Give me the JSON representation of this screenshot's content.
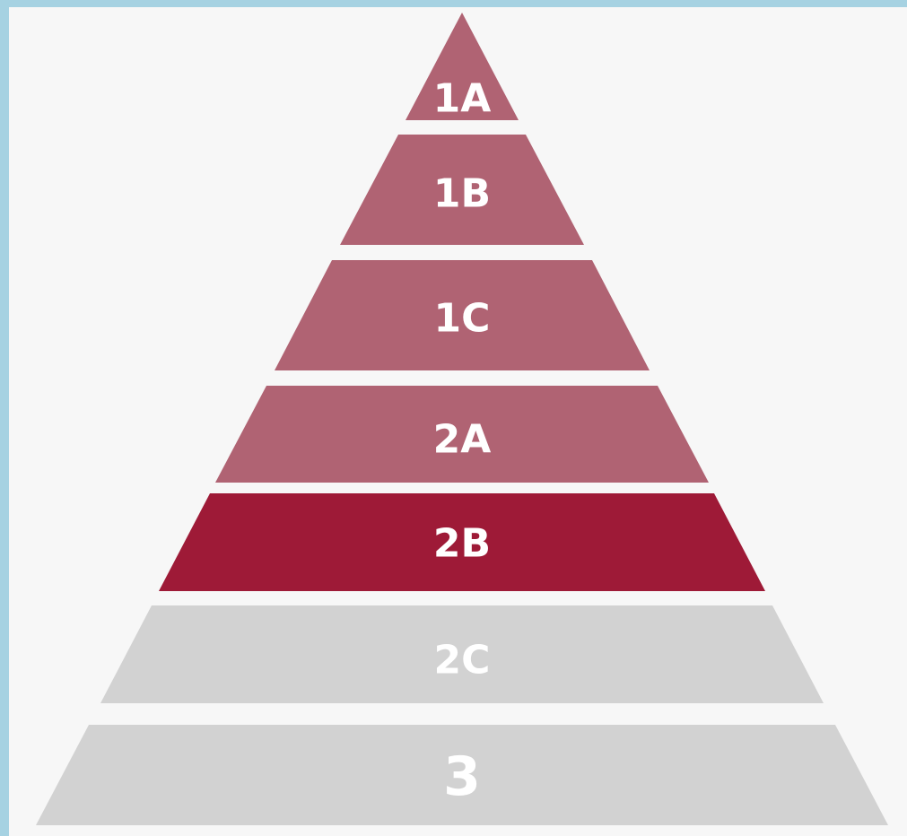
{
  "levels": [
    {
      "label": "1A"
    },
    {
      "label": "1B"
    },
    {
      "label": "1C"
    },
    {
      "label": "2A"
    },
    {
      "label": "2B"
    },
    {
      "label": "2C"
    },
    {
      "label": "3"
    }
  ]
}
